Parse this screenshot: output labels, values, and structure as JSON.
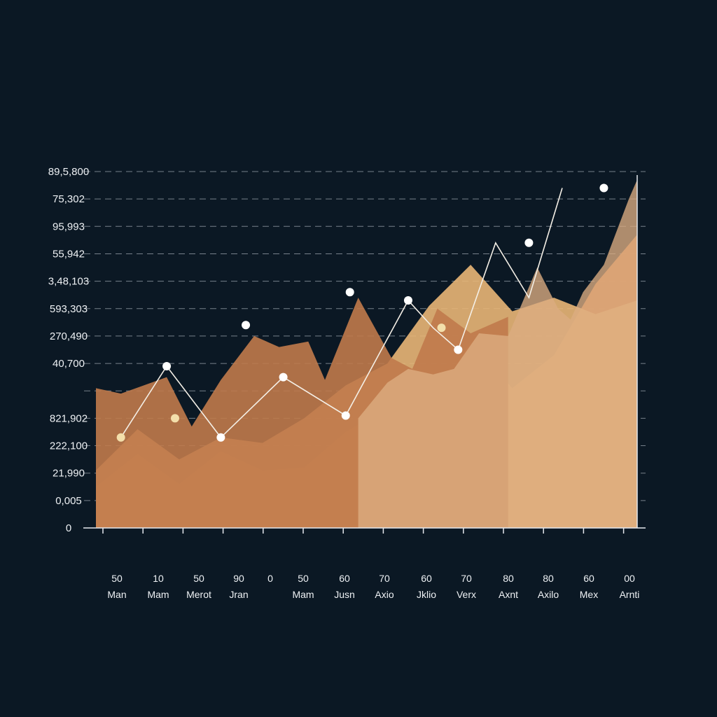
{
  "chart_data": {
    "type": "area",
    "title": "",
    "xlabel": "",
    "ylabel": "",
    "grid": true,
    "legend": "none",
    "y_tick_labels": [
      "89,5,800",
      "75,302",
      "95,993",
      "55,942",
      "3,48,103",
      "593,303",
      "270,490",
      "40,700",
      "",
      "821,902",
      "222,100",
      "21,990",
      "0,005",
      "0"
    ],
    "x_tick_numbers": [
      "50",
      "10",
      "50",
      "90",
      "0",
      "50",
      "60",
      "70",
      "60",
      "70",
      "80",
      "80",
      "60",
      "00"
    ],
    "x_tick_labels": [
      "Man",
      "Mam",
      "Merot",
      "Jran",
      "",
      "Mam",
      "Jusn",
      "Axio",
      "Jklio",
      "Verx",
      "Axnt",
      "Axilo",
      "Mex",
      "Arnti"
    ],
    "ylim": [
      0,
      13
    ],
    "series": [
      {
        "color": "#6f93bf",
        "x": [
          0,
          1,
          2,
          3,
          4,
          5,
          6,
          6.5,
          7,
          8,
          9,
          10,
          11,
          12,
          13
        ],
        "values": [
          0.3,
          0.5,
          0.65,
          0.9,
          1.0,
          0.75,
          0.3,
          0.55,
          0.75,
          0.5,
          1.5,
          2.3,
          1.8,
          1.4,
          1.0
        ]
      },
      {
        "color": "#8a78a0",
        "x": [
          0,
          1,
          2,
          3,
          4,
          5,
          6,
          7,
          8,
          9,
          10,
          11,
          12,
          13
        ],
        "values": [
          0.7,
          1.1,
          1.0,
          1.4,
          1.8,
          1.7,
          1.2,
          1.5,
          2.1,
          2.3,
          3.4,
          3.9,
          4.1,
          4.2
        ]
      },
      {
        "color": "#e45b47",
        "x": [
          0,
          1,
          2,
          3,
          4,
          5,
          6,
          7,
          8,
          9,
          10,
          10.9,
          11.5,
          12,
          13
        ],
        "values": [
          1.0,
          1.5,
          1.4,
          1.9,
          1.5,
          1.5,
          2.5,
          3.2,
          3.2,
          4.6,
          3.6,
          5.7,
          5.6,
          7.0,
          7.2
        ]
      },
      {
        "color": "#e8894c",
        "x": [
          0,
          1,
          2,
          3,
          4,
          5,
          6,
          7,
          8,
          9,
          10,
          11,
          12,
          13
        ],
        "values": [
          1.5,
          2.7,
          1.6,
          2.8,
          2.1,
          2.2,
          3.5,
          4.4,
          4.3,
          6.8,
          5.1,
          6.3,
          8.9,
          10.7
        ]
      },
      {
        "color": "#e9b677",
        "x": [
          0,
          1,
          2,
          3,
          4,
          5,
          6,
          7,
          8,
          9,
          10,
          11,
          12,
          13
        ],
        "values": [
          2.1,
          3.6,
          2.5,
          3.3,
          3.1,
          4.0,
          5.2,
          6.0,
          8.1,
          9.6,
          7.9,
          8.4,
          7.8,
          8.3
        ]
      },
      {
        "color": "#c07a4b",
        "x": [
          0,
          0.6,
          1.7,
          2.3,
          3.0,
          3.8,
          4.4,
          5.1,
          5.5,
          6.3,
          7.1,
          7.6,
          8.2,
          9.0,
          9.9
        ],
        "values": [
          5.1,
          4.9,
          5.5,
          3.7,
          5.4,
          7.0,
          6.6,
          6.8,
          5.4,
          8.4,
          6.2,
          5.8,
          8.0,
          7.1,
          7.7
        ]
      },
      {
        "color": "#dcad82",
        "x": [
          6.3,
          7.0,
          7.5,
          8.1,
          8.6,
          9.2,
          9.9,
          10.6,
          11.1,
          11.4,
          11.7,
          12.2,
          12.8,
          13.0
        ],
        "values": [
          4.0,
          5.3,
          5.8,
          5.6,
          5.8,
          7.1,
          7.0,
          9.5,
          8.0,
          7.6,
          8.6,
          9.6,
          12.0,
          12.7
        ]
      }
    ],
    "highlight_line": {
      "x": [
        0.6,
        1.7,
        3.0,
        4.5,
        6.0,
        7.5,
        8.1,
        8.7,
        9.6,
        10.4,
        11.2
      ],
      "values": [
        3.3,
        5.9,
        3.3,
        5.5,
        4.1,
        8.3,
        7.3,
        6.5,
        10.4,
        8.4,
        12.4
      ]
    },
    "markers": [
      {
        "x": 1.7,
        "value": 5.9,
        "color": "#ffffff"
      },
      {
        "x": 3.6,
        "value": 7.4,
        "color": "#ffffff"
      },
      {
        "x": 4.5,
        "value": 5.5,
        "color": "#ffffff"
      },
      {
        "x": 6.1,
        "value": 8.6,
        "color": "#ffffff"
      },
      {
        "x": 7.5,
        "value": 8.3,
        "color": "#ffffff"
      },
      {
        "x": 8.7,
        "value": 6.5,
        "color": "#ffffff"
      },
      {
        "x": 10.4,
        "value": 10.4,
        "color": "#ffffff"
      },
      {
        "x": 12.2,
        "value": 12.4,
        "color": "#ffffff"
      },
      {
        "x": 0.6,
        "value": 3.3,
        "color": "#f3dfab"
      },
      {
        "x": 1.9,
        "value": 4.0,
        "color": "#f3dfab"
      },
      {
        "x": 8.3,
        "value": 7.3,
        "color": "#f3dfab"
      },
      {
        "x": 3.0,
        "value": 3.3,
        "color": "#ffffff"
      },
      {
        "x": 6.0,
        "value": 4.1,
        "color": "#ffffff"
      }
    ]
  }
}
